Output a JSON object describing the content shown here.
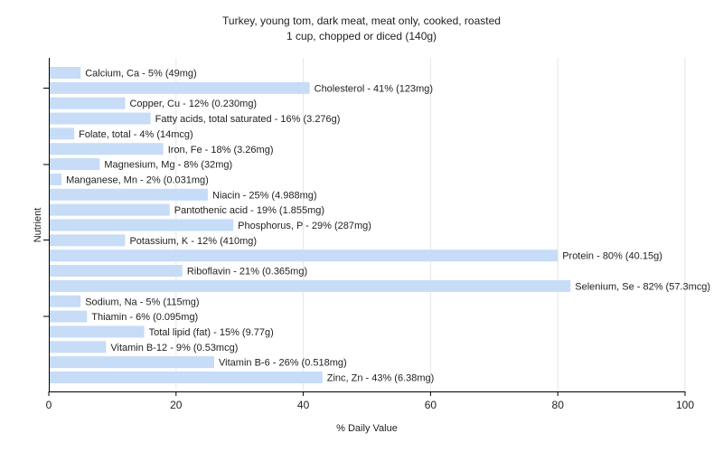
{
  "chart_data": {
    "type": "bar",
    "orientation": "horizontal",
    "title": "Turkey, young tom, dark meat, meat only, cooked, roasted",
    "subtitle": "1 cup, chopped or diced (140g)",
    "xlabel": "% Daily Value",
    "ylabel": "Nutrient",
    "xlim": [
      0,
      100
    ],
    "xticks": [
      "0",
      "20",
      "40",
      "60",
      "80",
      "100"
    ],
    "grid": true,
    "bar_color": "#c6dcf7",
    "categories": [
      "Calcium, Ca",
      "Cholesterol",
      "Copper, Cu",
      "Fatty acids, total saturated",
      "Folate, total",
      "Iron, Fe",
      "Magnesium, Mg",
      "Manganese, Mn",
      "Niacin",
      "Pantothenic acid",
      "Phosphorus, P",
      "Potassium, K",
      "Protein",
      "Riboflavin",
      "Selenium, Se",
      "Sodium, Na",
      "Thiamin",
      "Total lipid (fat)",
      "Vitamin B-12",
      "Vitamin B-6",
      "Zinc, Zn"
    ],
    "values": [
      5,
      41,
      12,
      16,
      4,
      18,
      8,
      2,
      25,
      19,
      29,
      12,
      80,
      21,
      82,
      5,
      6,
      15,
      9,
      26,
      43
    ],
    "labels": [
      "Calcium, Ca - 5% (49mg)",
      "Cholesterol - 41% (123mg)",
      "Copper, Cu - 12% (0.230mg)",
      "Fatty acids, total saturated - 16% (3.276g)",
      "Folate, total - 4% (14mcg)",
      "Iron, Fe - 18% (3.26mg)",
      "Magnesium, Mg - 8% (32mg)",
      "Manganese, Mn - 2% (0.031mg)",
      "Niacin - 25% (4.988mg)",
      "Pantothenic acid - 19% (1.855mg)",
      "Phosphorus, P - 29% (287mg)",
      "Potassium, K - 12% (410mg)",
      "Protein - 80% (40.15g)",
      "Riboflavin - 21% (0.365mg)",
      "Selenium, Se - 82% (57.3mcg)",
      "Sodium, Na - 5% (115mg)",
      "Thiamin - 6% (0.095mg)",
      "Total lipid (fat) - 15% (9.77g)",
      "Vitamin B-12 - 9% (0.53mcg)",
      "Vitamin B-6 - 26% (0.518mg)",
      "Zinc, Zn - 43% (6.38mg)"
    ]
  }
}
